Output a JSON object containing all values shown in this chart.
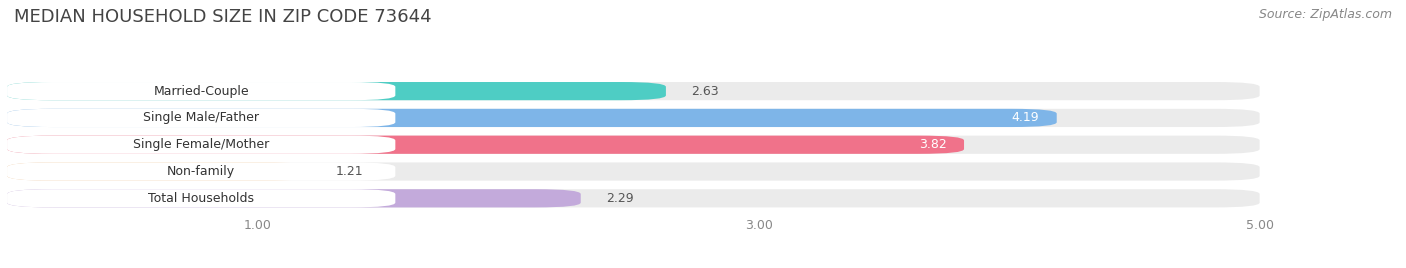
{
  "title": "MEDIAN HOUSEHOLD SIZE IN ZIP CODE 73644",
  "source": "Source: ZipAtlas.com",
  "categories": [
    "Married-Couple",
    "Single Male/Father",
    "Single Female/Mother",
    "Non-family",
    "Total Households"
  ],
  "values": [
    2.63,
    4.19,
    3.82,
    1.21,
    2.29
  ],
  "bar_colors": [
    "#4ECDC4",
    "#7EB5E8",
    "#F0728A",
    "#F5C99A",
    "#C3AADB"
  ],
  "xlim_min": 0.0,
  "xlim_max": 5.5,
  "data_min": 0.0,
  "data_max": 5.0,
  "xticks": [
    1.0,
    3.0,
    5.0
  ],
  "xtick_labels": [
    "1.00",
    "3.00",
    "5.00"
  ],
  "bg_color": "#ffffff",
  "bar_bg_color": "#ebebeb",
  "label_box_color": "#ffffff",
  "grid_color": "#ffffff",
  "title_fontsize": 13,
  "source_fontsize": 9,
  "label_fontsize": 9,
  "value_fontsize": 9,
  "value_inside_color": "#ffffff",
  "value_outside_color": "#555555",
  "label_text_color": "#333333",
  "tick_color": "#888888"
}
